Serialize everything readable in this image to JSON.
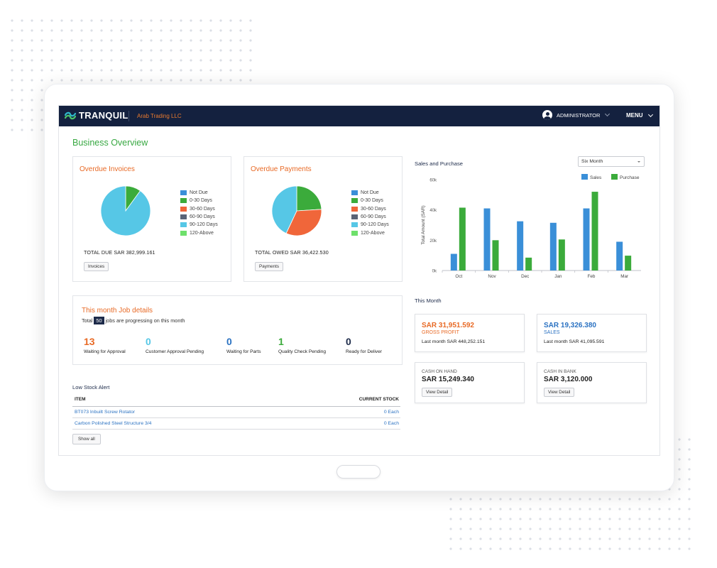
{
  "app": {
    "brand": "TRANQUIL",
    "company": "Arab Trading LLC",
    "user": "ADMINISTRATOR",
    "menu_label": "MENU"
  },
  "page_title": "Business Overview",
  "legend_items": [
    {
      "label": "Not Due",
      "color": "#3a8fd8"
    },
    {
      "label": "0-30 Days",
      "color": "#3bab3b"
    },
    {
      "label": "30-60 Days",
      "color": "#f0663a"
    },
    {
      "label": "60-90 Days",
      "color": "#5a6477"
    },
    {
      "label": "90-120 Days",
      "color": "#56c7e6"
    },
    {
      "label": "120-Above",
      "color": "#6ee06b"
    }
  ],
  "overdue_invoices": {
    "title": "Overdue Invoices",
    "total": "TOTAL DUE SAR 382,999.161",
    "button": "Invoices"
  },
  "overdue_payments": {
    "title": "Overdue Payments",
    "total": "TOTAL OWED SAR 36,422.530",
    "button": "Payments"
  },
  "jobs": {
    "title": "This month Job details",
    "prefix": "Total",
    "count": "50",
    "suffix": "jobs are progressing on this month",
    "stats": [
      {
        "value": "13",
        "label": "Waiting for Approval",
        "color": "#e86a26"
      },
      {
        "value": "0",
        "label": "Customer Approval Pending",
        "color": "#56c7e6"
      },
      {
        "value": "0",
        "label": "Waiting for Parts",
        "color": "#2b72c2"
      },
      {
        "value": "1",
        "label": "Quality Check Pending",
        "color": "#3bab3b"
      },
      {
        "value": "0",
        "label": "Ready for Deliver",
        "color": "#1d2b4a"
      }
    ]
  },
  "low_stock": {
    "title": "Low Stock Alert",
    "col_item": "ITEM",
    "col_stock": "CURRENT STOCK",
    "rows": [
      {
        "item": "BT073 Inbuilt Screw Rotator",
        "stock": "0 Each"
      },
      {
        "item": "Carbon Polished Steel Structure 3/4",
        "stock": "0 Each"
      }
    ],
    "button": "Show all"
  },
  "sales_purchase": {
    "title": "Sales and Purchase",
    "period": "Six Month"
  },
  "this_month": {
    "title": "This Month",
    "gross_profit": {
      "amount": "SAR 31,951.592",
      "label": "GROSS PROFIT",
      "last": "Last month SAR 448,252.151"
    },
    "sales": {
      "amount": "SAR 19,326.380",
      "label": "SALES",
      "last": "Last month SAR 41,095.591"
    },
    "cash_on_hand": {
      "label": "CASH ON HAND",
      "amount": "SAR 15,249.340",
      "button": "View Detail"
    },
    "cash_in_bank": {
      "label": "CASH IN BANK",
      "amount": "SAR 3,120.000",
      "button": "View Detail"
    }
  },
  "chart_data": [
    {
      "type": "pie",
      "title": "Overdue Invoices",
      "labels": [
        "0-30 Days",
        "90-120 Days"
      ],
      "values": [
        10,
        90
      ],
      "colors": [
        "#3bab3b",
        "#56c7e6"
      ]
    },
    {
      "type": "pie",
      "title": "Overdue Payments",
      "labels": [
        "0-30 Days",
        "30-60 Days",
        "90-120 Days"
      ],
      "values": [
        24,
        33,
        43
      ],
      "colors": [
        "#3bab3b",
        "#f0663a",
        "#56c7e6"
      ]
    },
    {
      "type": "bar",
      "title": "Sales and Purchase",
      "categories": [
        "Oct",
        "Nov",
        "Dec",
        "Jan",
        "Feb",
        "Mar"
      ],
      "series": [
        {
          "name": "Sales",
          "values": [
            11000,
            41000,
            32500,
            31500,
            41000,
            19000
          ],
          "color": "#3a8fd8"
        },
        {
          "name": "Purchase",
          "values": [
            41500,
            20000,
            8500,
            20500,
            52000,
            9800
          ],
          "color": "#3bab3b"
        }
      ],
      "ylabel": "Total Amount (SAR)",
      "ylim": [
        0,
        60000
      ],
      "yticks": [
        "0k",
        "20k",
        "40k",
        "60k"
      ],
      "legend": "top-right",
      "grid": false
    }
  ]
}
